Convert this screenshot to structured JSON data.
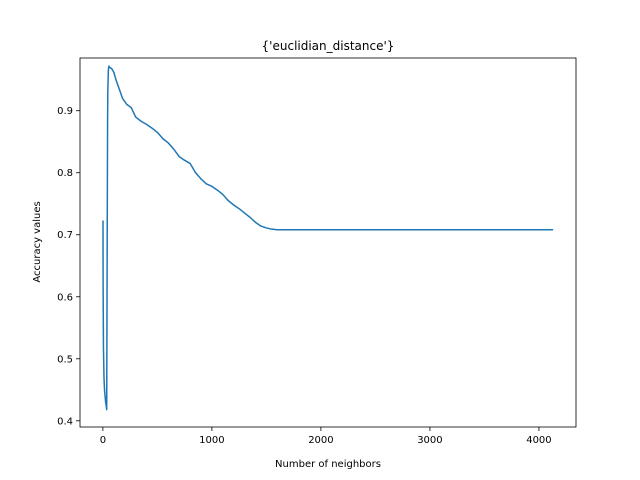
{
  "chart_data": {
    "type": "line",
    "title": "{'euclidian_distance'}",
    "xlabel": "Number of neighbors",
    "ylabel": "Accuracy values",
    "xlim": [
      -210,
      4340
    ],
    "ylim": [
      0.39,
      0.985
    ],
    "xticks": [
      0,
      1000,
      2000,
      3000,
      4000
    ],
    "yticks": [
      0.4,
      0.5,
      0.6,
      0.7,
      0.8,
      0.9
    ],
    "xtick_labels": [
      "0",
      "1000",
      "2000",
      "3000",
      "4000"
    ],
    "ytick_labels": [
      "0.4",
      "0.5",
      "0.6",
      "0.7",
      "0.8",
      "0.9"
    ],
    "grid": false,
    "series": [
      {
        "color": "#1f77b4",
        "x": [
          1,
          2,
          5,
          10,
          15,
          20,
          25,
          30,
          35,
          40,
          43,
          45,
          48,
          50,
          53,
          56,
          60,
          70,
          80,
          100,
          120,
          150,
          180,
          220,
          260,
          300,
          350,
          400,
          450,
          500,
          550,
          600,
          650,
          700,
          750,
          800,
          850,
          900,
          950,
          1000,
          1050,
          1100,
          1150,
          1200,
          1250,
          1300,
          1350,
          1400,
          1450,
          1500,
          1550,
          1600,
          1650,
          1700,
          2000,
          2500,
          3000,
          3500,
          4000,
          4130
        ],
        "y": [
          0.723,
          0.62,
          0.52,
          0.47,
          0.45,
          0.44,
          0.43,
          0.425,
          0.418,
          0.72,
          0.88,
          0.93,
          0.95,
          0.965,
          0.97,
          0.972,
          0.97,
          0.969,
          0.968,
          0.962,
          0.95,
          0.935,
          0.92,
          0.91,
          0.905,
          0.89,
          0.883,
          0.878,
          0.872,
          0.865,
          0.855,
          0.848,
          0.838,
          0.826,
          0.82,
          0.815,
          0.8,
          0.79,
          0.782,
          0.778,
          0.772,
          0.765,
          0.755,
          0.748,
          0.742,
          0.735,
          0.728,
          0.72,
          0.714,
          0.711,
          0.709,
          0.708,
          0.708,
          0.708,
          0.708,
          0.708,
          0.708,
          0.708,
          0.708,
          0.708
        ]
      }
    ]
  }
}
